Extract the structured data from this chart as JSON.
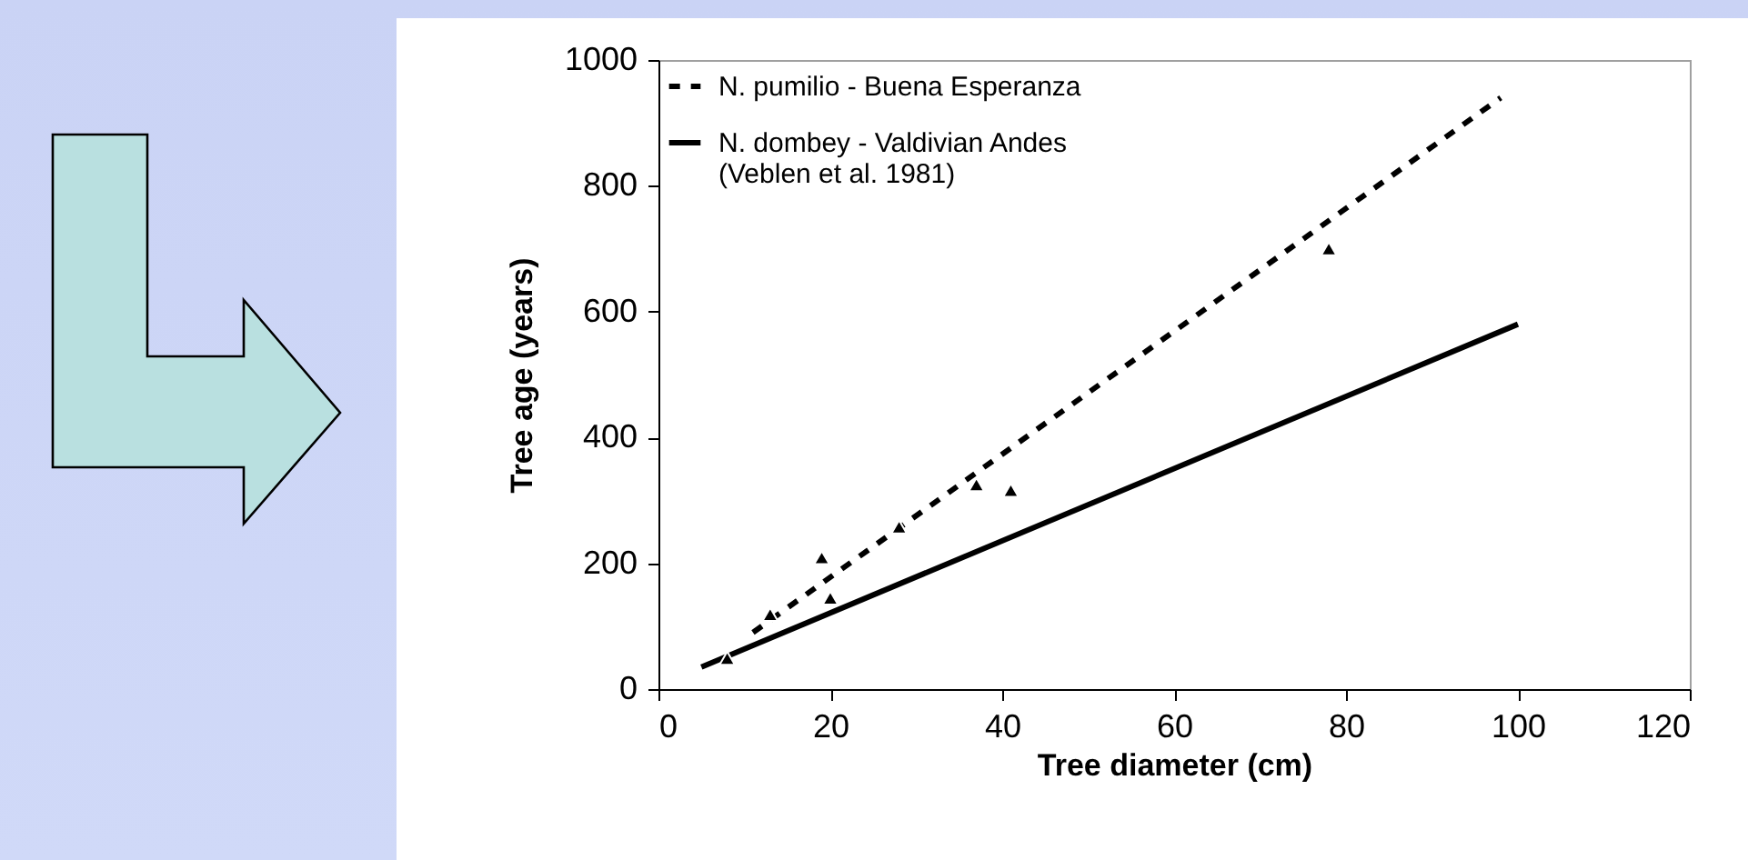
{
  "chart_data": {
    "type": "scatter",
    "xlabel": "Tree diameter (cm)",
    "ylabel": "Tree age (years)",
    "xlim": [
      0,
      120
    ],
    "xticks": [
      0,
      20,
      40,
      60,
      80,
      100,
      120
    ],
    "ylim": [
      0,
      1000
    ],
    "yticks": [
      0,
      200,
      400,
      600,
      800,
      1000
    ],
    "grid": false,
    "legend": "top left",
    "marker": "triangle",
    "series": [
      {
        "color": "#000000",
        "x": [
          8,
          13,
          19,
          20,
          28,
          37,
          41,
          78
        ],
        "values": [
          49,
          119,
          209,
          145,
          258,
          325,
          316,
          700
        ]
      },
      {
        "type": "line",
        "name": "N. pumilio - Buena Esperanza",
        "color": "#000000",
        "line_style": "dashed",
        "marker": "none",
        "x": [
          11,
          98
        ],
        "values": [
          90,
          940
        ]
      },
      {
        "type": "line",
        "name": "N. dombey - Valdivian Andes (Veblen et al. 1981)",
        "color": "#000000",
        "line_style": "solid",
        "marker": "none",
        "x": [
          5,
          100
        ],
        "values": [
          35,
          580
        ]
      }
    ]
  }
}
